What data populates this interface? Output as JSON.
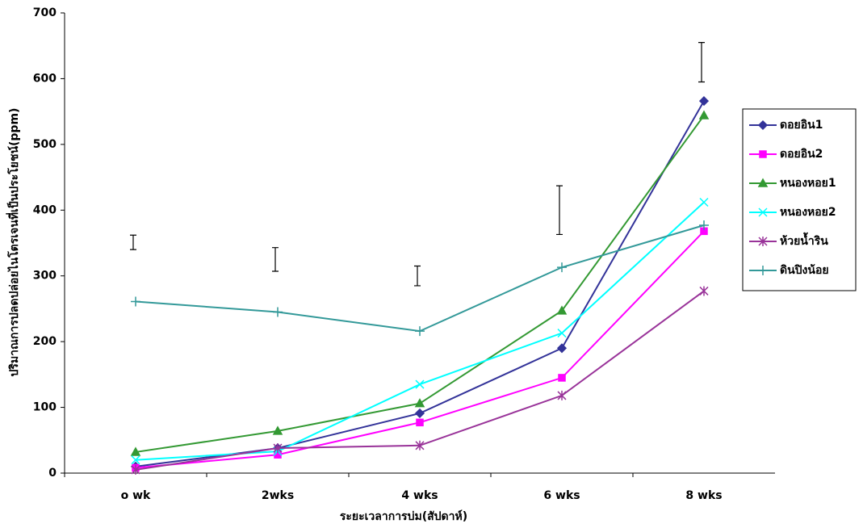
{
  "chart_data": {
    "type": "line",
    "x_label": "ระยะเวลาการบ่ม(สัปดาห์)",
    "y_label": "ปริมาณการปลดปล่อยไนโตรเจนที่เป็นประโยชน์(ppm)",
    "categories": [
      "o wk",
      "2wks",
      "4 wks",
      "6 wks",
      "8 wks"
    ],
    "ylim": [
      0,
      700
    ],
    "yticks": [
      0,
      100,
      200,
      300,
      400,
      500,
      600,
      700
    ],
    "grid": false,
    "legend": "right",
    "series": [
      {
        "name": "ดอยอิน1",
        "color": "#333399",
        "marker": "diamond",
        "values": [
          10,
          38,
          91,
          190,
          566
        ]
      },
      {
        "name": "ดอยอิน2",
        "color": "#ff00ff",
        "marker": "square",
        "values": [
          8,
          28,
          77,
          145,
          368
        ]
      },
      {
        "name": "หนองหอย1",
        "color": "#339933",
        "marker": "triangle",
        "values": [
          32,
          64,
          106,
          247,
          544
        ]
      },
      {
        "name": "หนองหอย2",
        "color": "#00ffff",
        "marker": "x",
        "values": [
          20,
          33,
          135,
          213,
          412
        ]
      },
      {
        "name": "ห้วยน้ำริน",
        "color": "#993399",
        "marker": "star",
        "values": [
          5,
          38,
          42,
          118,
          277
        ]
      },
      {
        "name": "ดินปิงน้อย",
        "color": "#339999",
        "marker": "plus",
        "values": [
          261,
          245,
          216,
          313,
          377
        ]
      }
    ],
    "error_bars": {
      "color": "#000000",
      "low": [
        340,
        307,
        285,
        363,
        595
      ],
      "high": [
        362,
        343,
        315,
        437,
        655
      ]
    }
  }
}
